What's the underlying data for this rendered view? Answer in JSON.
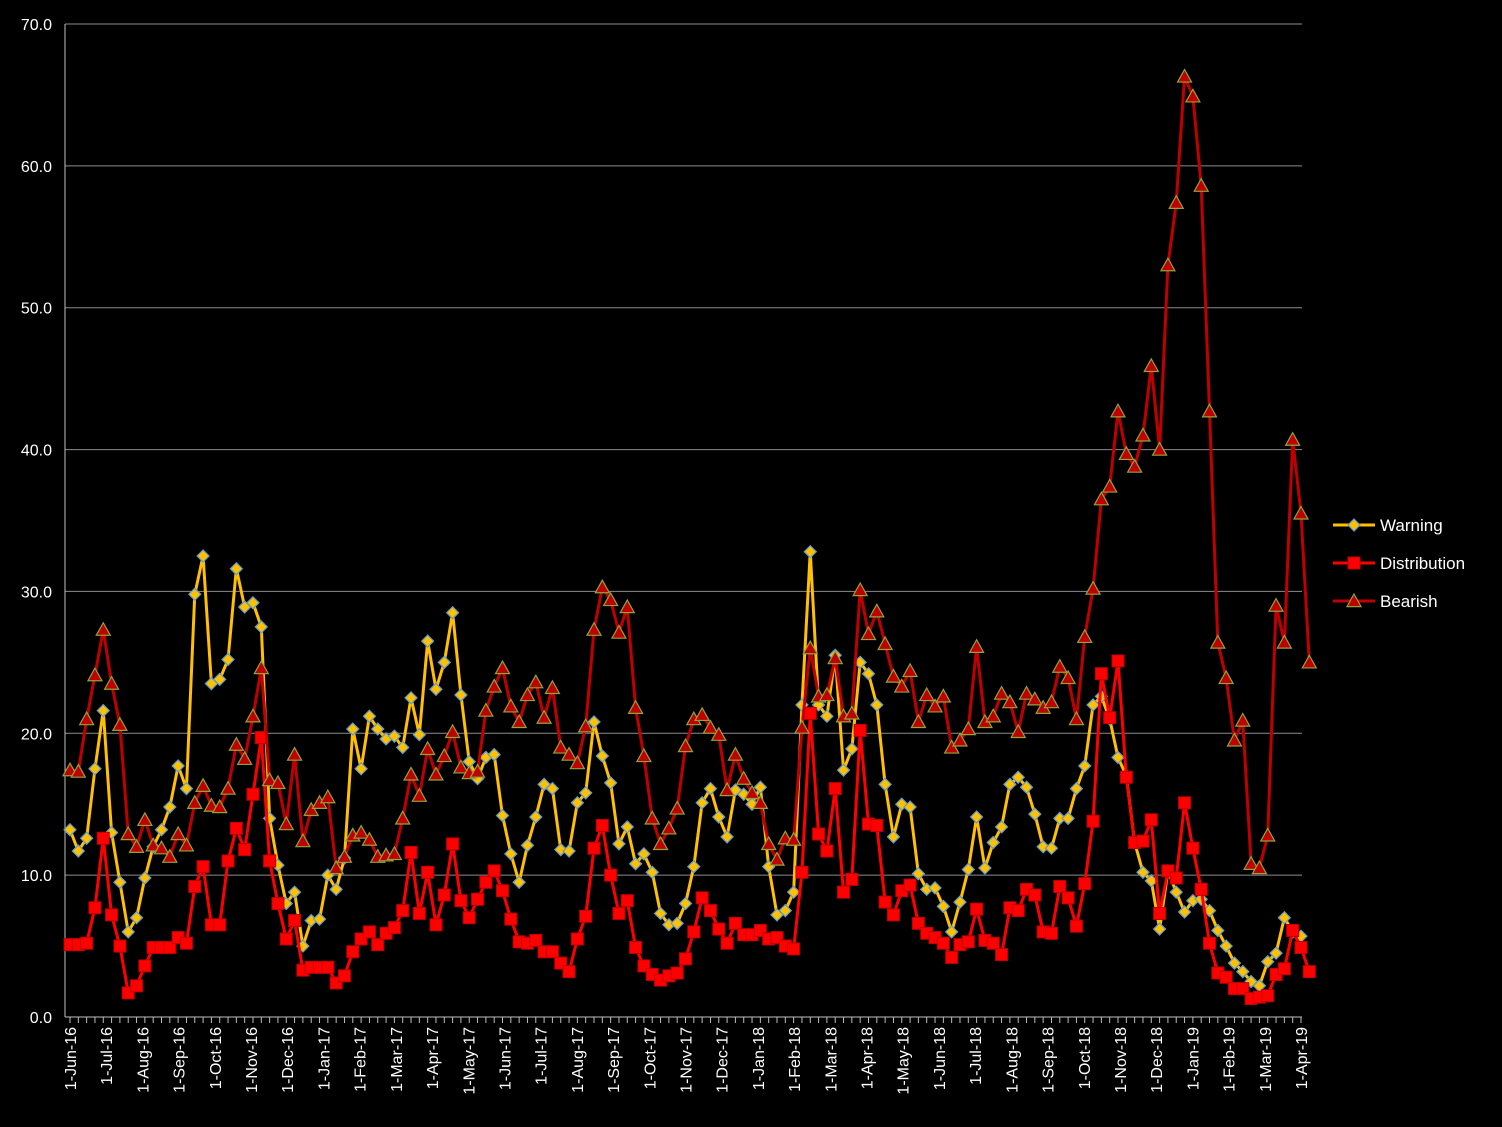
{
  "chart_data": {
    "type": "line",
    "title": "",
    "xlabel": "",
    "ylabel": "",
    "ylim": [
      0,
      70
    ],
    "y_ticks": [
      "0.0",
      "10.0",
      "20.0",
      "30.0",
      "40.0",
      "50.0",
      "60.0",
      "70.0"
    ],
    "x_ticks": [
      "1-Jun-16",
      "1-Jul-16",
      "1-Aug-16",
      "1-Sep-16",
      "1-Oct-16",
      "1-Nov-16",
      "1-Dec-16",
      "1-Jan-17",
      "1-Feb-17",
      "1-Mar-17",
      "1-Apr-17",
      "1-May-17",
      "1-Jun-17",
      "1-Jul-17",
      "1-Aug-17",
      "1-Sep-17",
      "1-Oct-17",
      "1-Nov-17",
      "1-Dec-17",
      "1-Jan-18",
      "1-Feb-18",
      "1-Mar-18",
      "1-Apr-18",
      "1-May-18",
      "1-Jun-18",
      "1-Jul-18",
      "1-Aug-18",
      "1-Sep-18",
      "1-Oct-18",
      "1-Nov-18",
      "1-Dec-18",
      "1-Jan-19",
      "1-Feb-19",
      "1-Mar-19",
      "1-Apr-19"
    ],
    "grid": "horizontal",
    "legend_position": "right",
    "series": [
      {
        "name": "Warning",
        "color": "#FFC000",
        "marker": "diamond",
        "values": [
          13.2,
          11.7,
          12.6,
          17.5,
          21.6,
          13.0,
          9.5,
          6.0,
          7.0,
          9.8,
          12.0,
          13.2,
          14.8,
          17.7,
          16.1,
          29.8,
          32.5,
          23.5,
          23.8,
          25.2,
          31.6,
          28.9,
          29.2,
          27.5,
          14.0,
          10.7,
          8.0,
          8.8,
          5.0,
          6.8,
          6.9,
          10.0,
          9.0,
          11.2,
          20.3,
          17.5,
          21.2,
          20.3,
          19.6,
          19.8,
          19.0,
          22.5,
          19.9,
          26.5,
          23.1,
          25.0,
          28.5,
          22.7,
          18.0,
          16.8,
          18.3,
          18.5,
          14.2,
          11.5,
          9.5,
          12.1,
          14.1,
          16.4,
          16.1,
          11.8,
          11.7,
          15.1,
          15.8,
          20.8,
          18.4,
          16.5,
          12.2,
          13.4,
          10.8,
          11.5,
          10.2,
          7.3,
          6.5,
          6.6,
          8.0,
          10.6,
          15.1,
          16.1,
          14.1,
          12.7,
          16.0,
          15.7,
          15.0,
          16.2,
          10.6,
          7.2,
          7.5,
          8.8,
          22.0,
          32.8,
          22.0,
          21.2,
          25.5,
          17.4,
          18.9,
          25.0,
          24.2,
          22.0,
          16.4,
          12.7,
          15.0,
          14.8,
          10.1,
          9.0,
          9.1,
          7.8,
          6.0,
          8.1,
          10.4,
          14.1,
          10.5,
          12.3,
          13.4,
          16.4,
          16.9,
          16.2,
          14.3,
          12.0,
          11.9,
          14.0,
          14.0,
          16.1,
          17.7,
          22.0,
          22.6,
          21.0,
          18.3,
          17.0,
          12.3,
          10.2,
          9.6,
          6.2,
          10.3,
          8.8,
          7.4,
          8.2,
          8.3,
          7.5,
          6.1,
          5.0,
          3.8,
          3.2,
          2.5,
          2.2,
          3.9,
          4.5,
          7.0,
          6.0,
          5.7
        ]
      },
      {
        "name": "Distribution",
        "color": "#FF0000",
        "marker": "square",
        "values": [
          5.1,
          5.1,
          5.2,
          7.7,
          12.6,
          7.2,
          5.0,
          1.7,
          2.2,
          3.6,
          4.9,
          4.9,
          4.9,
          5.6,
          5.2,
          9.2,
          10.6,
          6.5,
          6.5,
          11.0,
          13.3,
          11.8,
          15.7,
          19.7,
          11.0,
          8.0,
          5.5,
          6.8,
          3.3,
          3.5,
          3.5,
          3.5,
          2.4,
          2.9,
          4.6,
          5.5,
          6.0,
          5.1,
          5.9,
          6.3,
          7.5,
          11.6,
          7.3,
          10.2,
          6.5,
          8.6,
          12.2,
          8.2,
          7.0,
          8.3,
          9.5,
          10.3,
          8.9,
          6.9,
          5.3,
          5.2,
          5.4,
          4.6,
          4.6,
          3.8,
          3.2,
          5.5,
          7.1,
          11.9,
          13.5,
          10.0,
          7.3,
          8.2,
          4.9,
          3.6,
          3.0,
          2.6,
          2.9,
          3.1,
          4.1,
          6.0,
          8.4,
          7.5,
          6.2,
          5.2,
          6.6,
          5.8,
          5.8,
          6.1,
          5.5,
          5.6,
          5.0,
          4.8,
          10.2,
          21.4,
          12.9,
          11.7,
          16.1,
          8.8,
          9.7,
          20.2,
          13.6,
          13.5,
          8.1,
          7.2,
          8.9,
          9.3,
          6.6,
          5.9,
          5.6,
          5.2,
          4.2,
          5.1,
          5.3,
          7.6,
          5.4,
          5.2,
          4.4,
          7.7,
          7.5,
          9.0,
          8.6,
          6.0,
          5.9,
          9.2,
          8.4,
          6.4,
          9.4,
          13.8,
          24.2,
          21.1,
          25.1,
          16.9,
          12.3,
          12.4,
          13.9,
          7.3,
          10.3,
          9.8,
          15.1,
          11.9,
          9.0,
          5.2,
          3.1,
          2.8,
          2.0,
          2.0,
          1.3,
          1.4,
          1.5,
          3.0,
          3.4,
          6.1,
          4.9,
          3.2
        ]
      },
      {
        "name": "Bearish",
        "color": "#C00000",
        "marker": "triangle",
        "values": [
          17.4,
          17.3,
          21.0,
          24.1,
          27.3,
          23.5,
          20.6,
          12.9,
          12.0,
          13.9,
          12.1,
          11.9,
          11.3,
          12.9,
          12.1,
          15.1,
          16.3,
          14.9,
          14.8,
          16.1,
          19.2,
          18.2,
          21.2,
          24.6,
          16.7,
          16.5,
          13.6,
          18.5,
          12.4,
          14.6,
          15.1,
          15.5,
          10.5,
          11.3,
          12.8,
          13.0,
          12.5,
          11.3,
          11.4,
          11.5,
          14.0,
          17.1,
          15.6,
          18.9,
          17.1,
          18.4,
          20.1,
          17.6,
          17.2,
          17.3,
          21.6,
          23.3,
          24.6,
          21.9,
          20.8,
          22.7,
          23.6,
          21.1,
          23.2,
          19.0,
          18.5,
          17.9,
          20.5,
          27.3,
          30.3,
          29.4,
          27.1,
          28.9,
          21.8,
          18.4,
          14.0,
          12.2,
          13.3,
          14.7,
          19.1,
          21.0,
          21.3,
          20.4,
          19.9,
          16.0,
          18.5,
          16.8,
          15.8,
          15.1,
          12.2,
          11.1,
          12.6,
          12.5,
          20.4,
          26.0,
          22.6,
          22.7,
          25.3,
          21.2,
          21.4,
          30.1,
          27.0,
          28.6,
          26.3,
          24.0,
          23.3,
          24.4,
          20.8,
          22.7,
          21.9,
          22.6,
          19.0,
          19.5,
          20.3,
          26.1,
          20.8,
          21.2,
          22.8,
          22.2,
          20.1,
          22.8,
          22.4,
          21.8,
          22.2,
          24.7,
          23.9,
          21.0,
          26.8,
          30.2,
          36.5,
          37.4,
          42.7,
          39.7,
          38.8,
          41.0,
          45.9,
          40.0,
          53.0,
          57.4,
          66.3,
          64.9,
          58.6,
          42.7,
          26.4,
          23.9,
          19.5,
          20.9,
          10.8,
          10.5,
          12.8,
          29.0,
          26.4,
          40.7,
          35.5,
          25.0
        ]
      }
    ]
  }
}
